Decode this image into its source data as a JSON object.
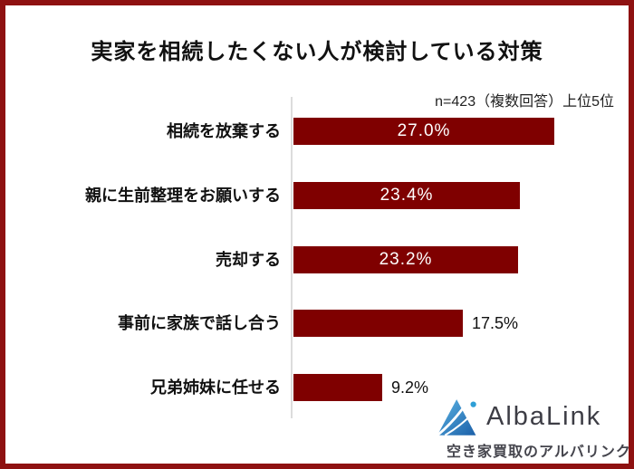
{
  "title": "実家を相続したくない人が検討している対策",
  "note": "n=423（複数回答）上位5位",
  "chart_data": {
    "type": "bar",
    "orientation": "horizontal",
    "title": "実家を相続したくない人が検討している対策",
    "note": "n=423（複数回答）上位5位",
    "categories": [
      "相続を放棄する",
      "親に生前整理をお願いする",
      "売却する",
      "事前に家族で話し合う",
      "兄弟姉妹に任せる"
    ],
    "values": [
      27.0,
      23.4,
      23.2,
      17.5,
      9.2
    ],
    "value_labels": [
      "27.0%",
      "23.4%",
      "23.2%",
      "17.5%",
      "9.2%"
    ],
    "unit": "%",
    "xlim": [
      0,
      34
    ],
    "grid": false,
    "legend": "none",
    "bar_color": "#7f0000"
  },
  "logo": {
    "name": "AlbaLink",
    "tagline": "空き家買取のアルバリンク",
    "icon": "mountain-triangle-logo"
  },
  "colors": {
    "frame": "#8e1111",
    "bar": "#7f0000",
    "axis_line": "#dcdcdc",
    "title_text": "#111111",
    "value_inside": "#ffffff",
    "value_outside": "#111111",
    "logo_text": "#3d3d45",
    "tagline_text": "#45454d",
    "logo_blue_light": "#5cb5e4",
    "logo_blue_dark": "#1b5fa8",
    "logo_dot": "#2e9fd6"
  }
}
